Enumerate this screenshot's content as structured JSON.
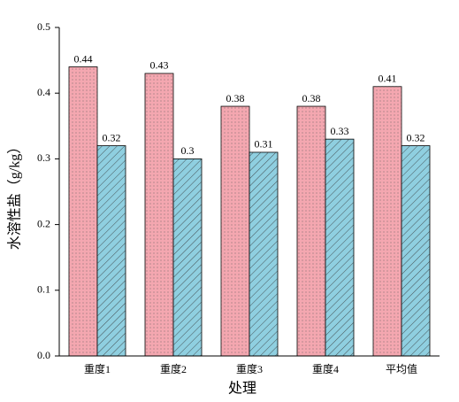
{
  "chart_data": {
    "type": "bar",
    "x_label": "处理",
    "y_label": "水溶性盐（g/kg）",
    "categories": [
      "重度1",
      "重度2",
      "重度3",
      "重度4",
      "平均值"
    ],
    "series": [
      {
        "color": "#f4a7b0",
        "pattern": "dots",
        "values": [
          0.44,
          0.43,
          0.38,
          0.38,
          0.41
        ]
      },
      {
        "color": "#8fcfe0",
        "pattern": "hatch",
        "values": [
          0.32,
          0.3,
          0.31,
          0.33,
          0.32
        ]
      }
    ],
    "ylim": [
      0,
      0.5
    ],
    "yticks": [
      {
        "value": 0,
        "label": "0.0"
      },
      0.1,
      0.2,
      0.3,
      0.4,
      0.5
    ]
  }
}
